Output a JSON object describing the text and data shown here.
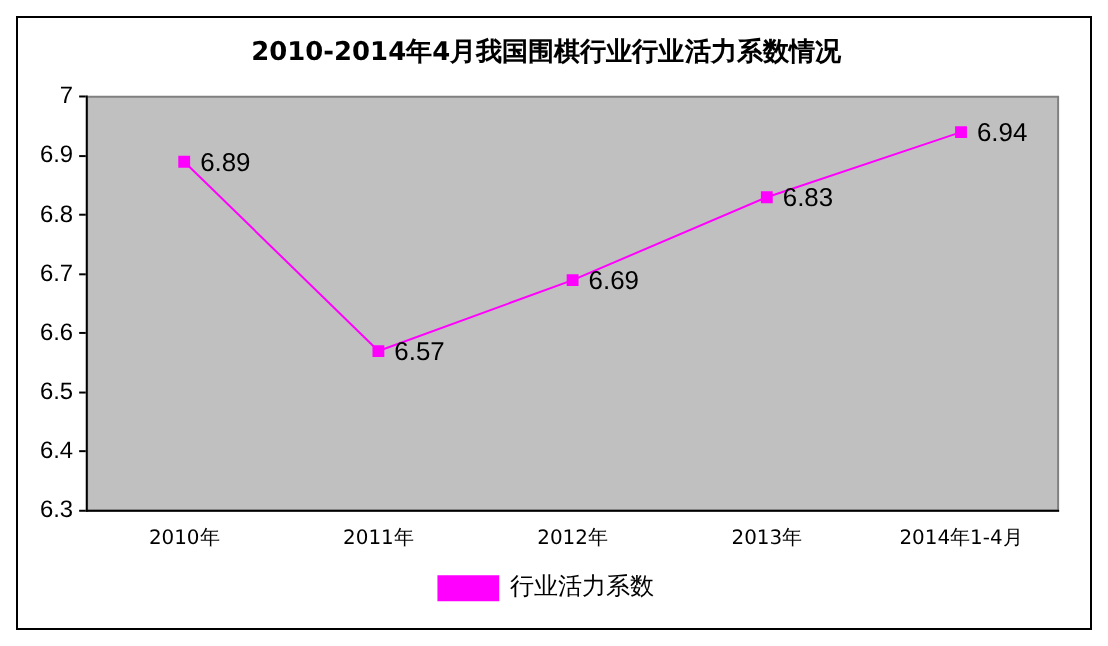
{
  "chart_data": {
    "type": "line",
    "title": "2010-2014年4月我国围棋行业行业活力系数情况",
    "categories": [
      "2010年",
      "2011年",
      "2012年",
      "2013年",
      "2014年1-4月"
    ],
    "series": [
      {
        "name": "行业活力系数",
        "color": "#ff00ff",
        "values": [
          6.89,
          6.57,
          6.69,
          6.83,
          6.94
        ]
      }
    ],
    "ylim": [
      6.3,
      7
    ],
    "yticks": [
      6.3,
      6.4,
      6.5,
      6.6,
      6.7,
      6.8,
      6.9,
      7
    ],
    "grid": false,
    "legend": "bottom",
    "marker": "square",
    "line_style": "solid",
    "data_labels": true
  }
}
